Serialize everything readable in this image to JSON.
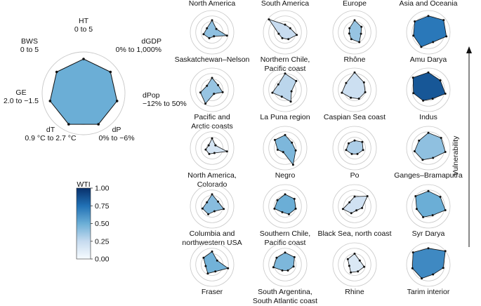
{
  "chart_data": {
    "type": "radar",
    "title": "",
    "reference": {
      "axes": [
        {
          "name": "HT",
          "range": "0 to 5"
        },
        {
          "name": "dGDP",
          "range": "0% to 1,000%"
        },
        {
          "name": "dPop",
          "range": "−12% to 50%"
        },
        {
          "name": "dP",
          "range": "0% to −6%"
        },
        {
          "name": "dT",
          "range": "0.9 °C to 2.7 °C"
        },
        {
          "name": "GE",
          "range": "2.0 to −1.5"
        },
        {
          "name": "BWS",
          "range": "0 to 5"
        }
      ],
      "values": [
        0.83,
        0.83,
        0.83,
        0.83,
        0.83,
        0.83,
        0.83
      ],
      "wti": 0.5
    },
    "colorbar": {
      "label": "WTI",
      "ticks": [
        "1.00",
        "0.75",
        "0.50",
        "0.25",
        "0.00"
      ],
      "stops": [
        "#f7fbff",
        "#c6dbef",
        "#6baed6",
        "#2171b5",
        "#08306b"
      ]
    },
    "regions": [
      "North America",
      "South America",
      "Europe",
      "Asia and Oceania"
    ],
    "vulnerability_label": "Vulnerability",
    "basins": [
      [
        {
          "name": [
            "Saskatchewan–Nelson"
          ],
          "wti": 0.4,
          "values": [
            0.55,
            0.25,
            0.7,
            0.2,
            0.3,
            0.4,
            0.3
          ]
        },
        {
          "name": [
            "Pacific and",
            "Arctic coasts"
          ],
          "wti": 0.38,
          "values": [
            0.55,
            0.35,
            0.5,
            0.2,
            0.7,
            0.55,
            0.3
          ]
        },
        {
          "name": [
            "North America,",
            "Colorado"
          ],
          "wti": 0.18,
          "values": [
            0.45,
            0.2,
            0.7,
            0.25,
            0.3,
            0.3,
            0.2
          ]
        },
        {
          "name": [
            "Columbia and",
            "northwestern USA"
          ],
          "wti": 0.42,
          "values": [
            0.55,
            0.35,
            0.55,
            0.25,
            0.4,
            0.45,
            0.3
          ]
        },
        {
          "name": [
            "Fraser"
          ],
          "wti": 0.48,
          "values": [
            0.6,
            0.3,
            0.75,
            0.35,
            0.45,
            0.3,
            0.5
          ]
        }
      ],
      [
        {
          "name": [
            "Northern Chile,",
            "Pacific coast"
          ],
          "wti": 0.24,
          "values": [
            0.35,
            0.3,
            0.55,
            0.35,
            0.3,
            0.3,
            0.95
          ]
        },
        {
          "name": [
            "La Puna region"
          ],
          "wti": 0.28,
          "values": [
            0.75,
            0.65,
            0.3,
            0.6,
            0.35,
            0.6,
            0.4
          ]
        },
        {
          "name": [
            "Negro"
          ],
          "wti": 0.45,
          "values": [
            0.6,
            0.4,
            0.5,
            0.85,
            0.2,
            0.35,
            0.6
          ]
        },
        {
          "name": [
            "Southern Chile,",
            "Pacific coast"
          ],
          "wti": 0.5,
          "values": [
            0.55,
            0.55,
            0.5,
            0.4,
            0.3,
            0.5,
            0.45
          ]
        },
        {
          "name": [
            "South Argentina,",
            "South Atlantic coast"
          ],
          "wti": 0.45,
          "values": [
            0.55,
            0.55,
            0.4,
            0.3,
            0.3,
            0.55,
            0.5
          ]
        }
      ],
      [
        {
          "name": [
            "Rhône"
          ],
          "wti": 0.38,
          "values": [
            0.55,
            0.4,
            0.3,
            0.5,
            0.35,
            0.25,
            0.3
          ]
        },
        {
          "name": [
            "Caspian Sea coast"
          ],
          "wti": 0.22,
          "values": [
            0.8,
            0.55,
            0.5,
            0.45,
            0.4,
            0.6,
            0.5
          ]
        },
        {
          "name": [
            "Po"
          ],
          "wti": 0.32,
          "values": [
            0.35,
            0.45,
            0.4,
            0.3,
            0.3,
            0.4,
            0.35
          ]
        },
        {
          "name": [
            "Black Sea, north coast"
          ],
          "wti": 0.2,
          "values": [
            0.45,
            0.75,
            0.35,
            0.2,
            0.35,
            0.55,
            0.3
          ]
        },
        {
          "name": [
            "Rhine"
          ],
          "wti": 0.15,
          "values": [
            0.5,
            0.3,
            0.45,
            0.35,
            0.4,
            0.25,
            0.4
          ]
        }
      ],
      [
        {
          "name": [
            "Amu Darya"
          ],
          "wti": 0.72,
          "values": [
            0.75,
            0.9,
            0.85,
            0.5,
            0.75,
            0.7,
            0.8
          ]
        },
        {
          "name": [
            "Indus"
          ],
          "wti": 0.85,
          "values": [
            0.8,
            0.7,
            0.8,
            0.45,
            0.55,
            0.7,
            0.9
          ]
        },
        {
          "name": [
            "Ganges–Bramaputra"
          ],
          "wti": 0.4,
          "values": [
            0.7,
            0.75,
            0.8,
            0.5,
            0.6,
            0.65,
            0.55
          ]
        },
        {
          "name": [
            "Syr Darya"
          ],
          "wti": 0.5,
          "values": [
            0.7,
            0.7,
            0.8,
            0.45,
            0.55,
            0.55,
            0.75
          ]
        },
        {
          "name": [
            "Tarim interior"
          ],
          "wti": 0.65,
          "values": [
            0.75,
            1.0,
            0.7,
            0.5,
            0.7,
            0.75,
            0.9
          ]
        }
      ]
    ]
  }
}
